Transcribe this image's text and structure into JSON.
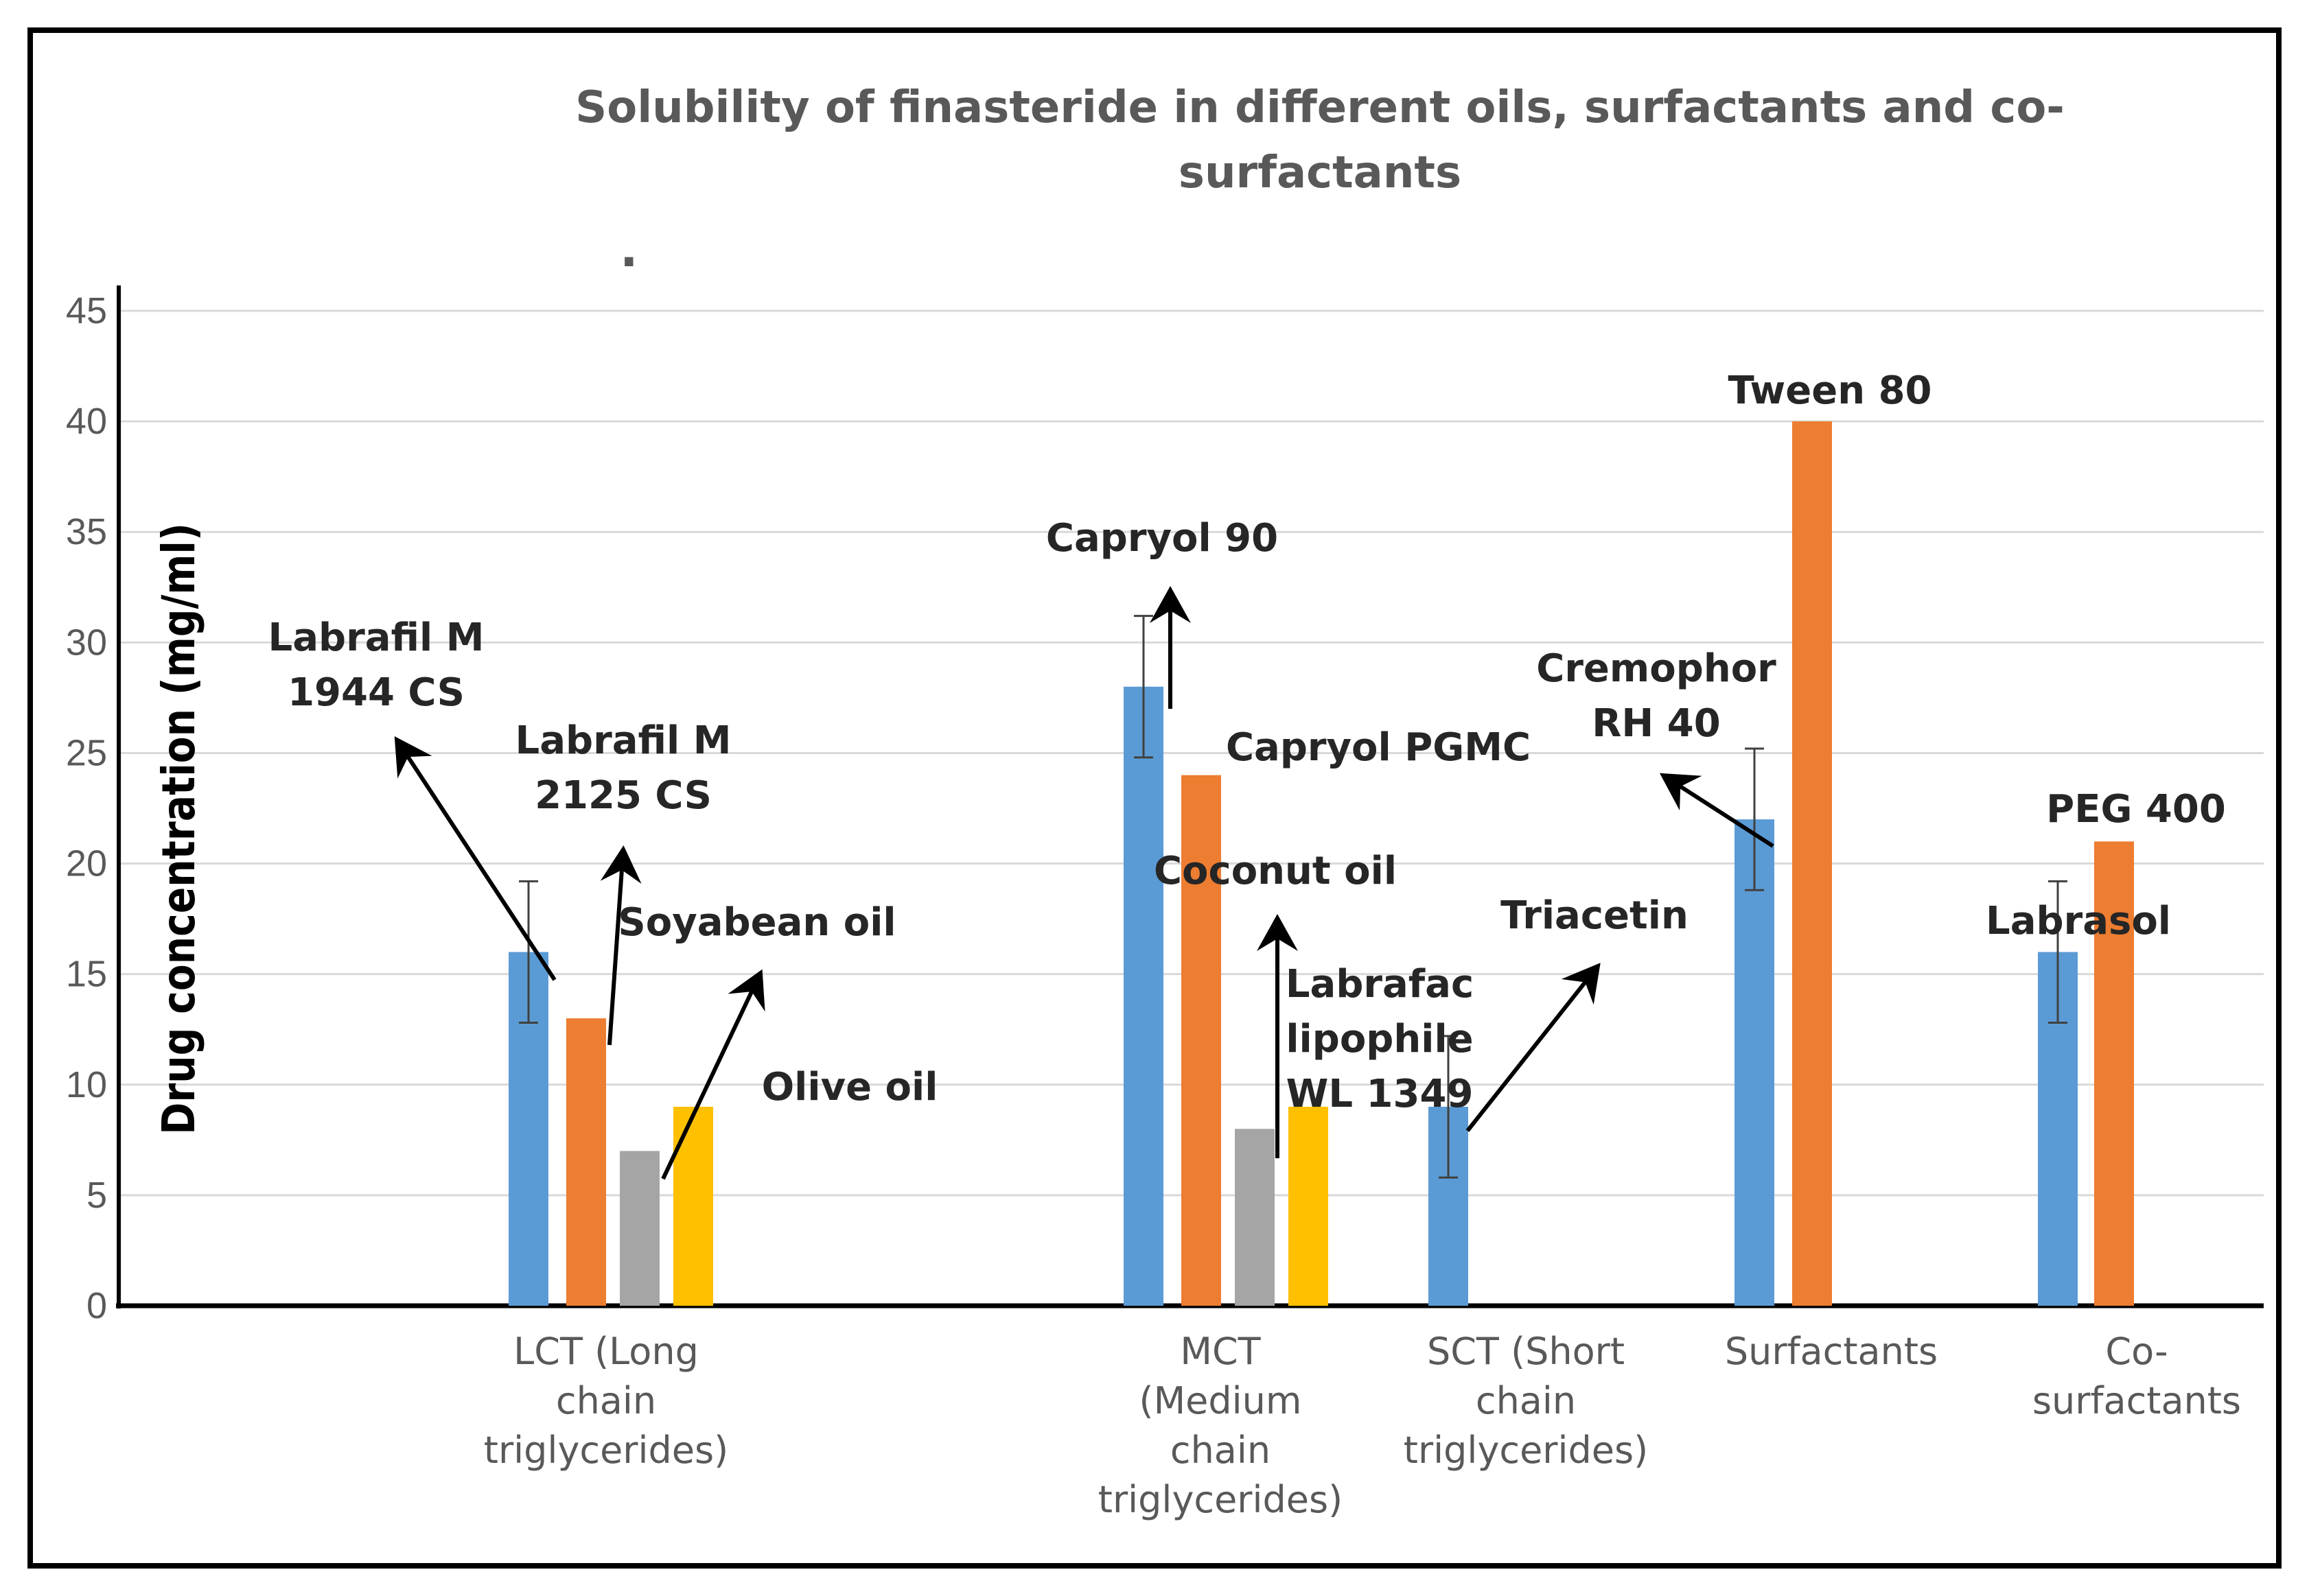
{
  "chart_data": {
    "type": "bar",
    "title": "Solubility of finasteride in different oils, surfactants and co-surfactants",
    "title_lines": [
      "Solubility of finasteride in different oils, surfactants and co-",
      "surfactants"
    ],
    "xlabel": "",
    "ylabel": "Drug concentration (mg/ml)",
    "ylim": [
      0,
      45
    ],
    "yticks": [
      0,
      5,
      10,
      15,
      20,
      25,
      30,
      35,
      40,
      45
    ],
    "grid": true,
    "colors": {
      "blue": "#5b9bd5",
      "orange": "#ed7d31",
      "gray": "#a5a5a5",
      "yellow": "#ffc000"
    },
    "categories": [
      {
        "label_lines": [
          "LCT (Long",
          "chain",
          "triglycerides)"
        ]
      },
      {
        "label_lines": [
          "MCT",
          "(Medium",
          "chain",
          "triglycerides)"
        ]
      },
      {
        "label_lines": [
          "SCT (Short",
          "chain",
          "triglycerides)"
        ]
      },
      {
        "label_lines": [
          "Surfactants"
        ]
      },
      {
        "label_lines": [
          "Co-",
          "surfactants"
        ]
      }
    ],
    "bars": [
      {
        "name": "Labrafil M 1944 CS",
        "category": 0,
        "color": "blue",
        "value": 16,
        "error": 3.2
      },
      {
        "name": "Labrafil M 2125 CS",
        "category": 0,
        "color": "orange",
        "value": 13,
        "error": null
      },
      {
        "name": "Soyabean oil",
        "category": 0,
        "color": "gray",
        "value": 7,
        "error": null
      },
      {
        "name": "Olive oil",
        "category": 0,
        "color": "yellow",
        "value": 9,
        "error": null
      },
      {
        "name": "Capryol 90",
        "category": 1,
        "color": "blue",
        "value": 28,
        "error": 3.2
      },
      {
        "name": "Capryol PGMC",
        "category": 1,
        "color": "orange",
        "value": 24,
        "error": null
      },
      {
        "name": "Coconut oil",
        "category": 1,
        "color": "gray",
        "value": 8,
        "error": null
      },
      {
        "name": "Labrafac lipophile WL 1349",
        "category": 1,
        "color": "yellow",
        "value": 9,
        "error": null
      },
      {
        "name": "Triacetin",
        "category": 2,
        "color": "blue",
        "value": 9,
        "error": 3.2
      },
      {
        "name": "Cremophor RH 40",
        "category": 3,
        "color": "blue",
        "value": 22,
        "error": 3.2
      },
      {
        "name": "Tween 80",
        "category": 3,
        "color": "orange",
        "value": 40,
        "error": null
      },
      {
        "name": "Labrasol",
        "category": 4,
        "color": "blue",
        "value": 16,
        "error": 3.2
      },
      {
        "name": "PEG 400",
        "category": 4,
        "color": "orange",
        "value": 21,
        "error": null
      }
    ],
    "annotations": [
      {
        "lines": [
          "Labrafil M",
          "1944 CS"
        ]
      },
      {
        "lines": [
          "Labrafil M",
          "2125 CS"
        ]
      },
      {
        "lines": [
          "Soyabean oil"
        ]
      },
      {
        "lines": [
          "Olive oil"
        ]
      },
      {
        "lines": [
          "Capryol 90"
        ]
      },
      {
        "lines": [
          "Capryol PGMC"
        ]
      },
      {
        "lines": [
          "Coconut oil"
        ]
      },
      {
        "lines": [
          "Labrafac",
          "lipophile",
          "WL 1349"
        ]
      },
      {
        "lines": [
          "Triacetin"
        ]
      },
      {
        "lines": [
          "Cremophor",
          "RH 40"
        ]
      },
      {
        "lines": [
          "Tween 80"
        ]
      },
      {
        "lines": [
          "Labrasol"
        ]
      },
      {
        "lines": [
          "PEG 400"
        ]
      }
    ],
    "stray_mark": "."
  }
}
